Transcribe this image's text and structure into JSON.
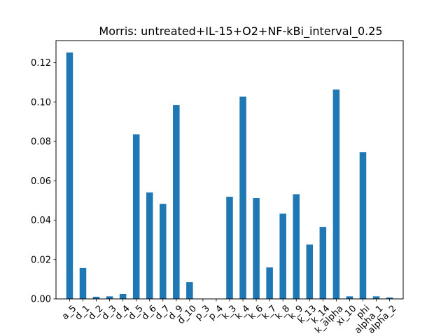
{
  "chart_data": {
    "type": "bar",
    "title": "Morris: untreated+IL-15+O2+NF-kBi_interval_0.25",
    "xlabel": "",
    "ylabel": "",
    "categories": [
      "a_5",
      "d_1",
      "d_2",
      "d_3",
      "d_4",
      "d_5",
      "d_6",
      "d_7",
      "d_9",
      "d_10",
      "p_3",
      "p_4",
      "k_3",
      "k_4",
      "k_6",
      "k_7",
      "k_8",
      "k_9",
      "k_13",
      "k_14",
      "k_alpha",
      "xi_10",
      "phi",
      "alpha_1",
      "alpha_2"
    ],
    "values": [
      0.1252,
      0.0157,
      0.0011,
      0.0013,
      0.0025,
      0.0836,
      0.0541,
      0.0483,
      0.0985,
      0.0085,
      0.0,
      0.0,
      0.0519,
      0.1028,
      0.0512,
      0.016,
      0.0433,
      0.0532,
      0.0276,
      0.0366,
      0.1064,
      0.0013,
      0.0746,
      0.0013,
      0.0007
    ],
    "ylim": [
      0,
      0.13125
    ],
    "yticks": [
      0.0,
      0.02,
      0.04,
      0.06,
      0.08,
      0.1,
      0.12
    ],
    "ytick_labels": [
      "0.00",
      "0.02",
      "0.04",
      "0.06",
      "0.08",
      "0.10",
      "0.12"
    ],
    "bar_color": "#1f77b4",
    "grid": false,
    "legend": "none"
  }
}
